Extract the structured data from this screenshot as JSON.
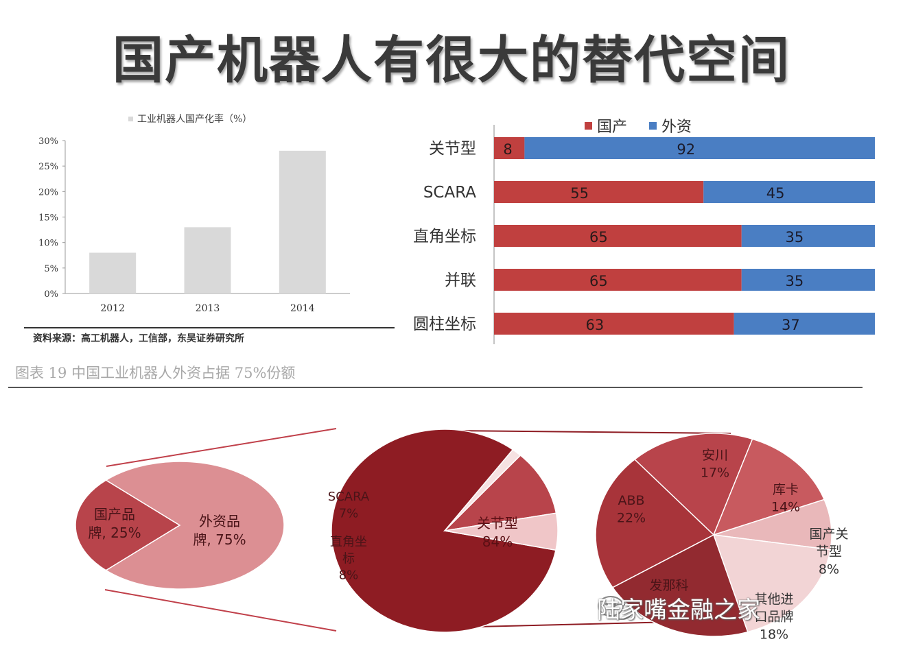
{
  "title": "国产机器人有很大的替代空间",
  "caption": "图表 19 中国工业机器人外资占据 75%份额",
  "watermark": "陆家嘴金融之家",
  "colors": {
    "domestic": "#c0403f",
    "foreign": "#4a7ec3",
    "bar_gray": "#d9d9d9",
    "pie_dark": "#8e1c23",
    "pie_mid": "#b8444b",
    "pie_light": "#dc8f93",
    "pie_pale": "#f2d4d5"
  },
  "chart_data": [
    {
      "type": "bar",
      "legend": "工业机器人国产化率（%）",
      "categories": [
        "2012",
        "2013",
        "2014"
      ],
      "values": [
        8,
        13,
        28
      ],
      "yticks": [
        "0%",
        "5%",
        "10%",
        "15%",
        "20%",
        "25%",
        "30%"
      ],
      "ylim": [
        0,
        30
      ],
      "source": "资料来源：高工机器人，工信部，东吴证券研究所"
    },
    {
      "type": "bar",
      "orientation": "horizontal-stacked",
      "categories": [
        "关节型",
        "SCARA",
        "直角坐标",
        "并联",
        "圆柱坐标"
      ],
      "series": [
        {
          "name": "国产",
          "values": [
            8,
            55,
            65,
            65,
            63
          ]
        },
        {
          "name": "外资",
          "values": [
            92,
            45,
            35,
            35,
            37
          ]
        }
      ],
      "xlim": [
        0,
        100
      ]
    },
    {
      "type": "pie",
      "slices": [
        {
          "label": "国产品牌, 25%",
          "value": 25
        },
        {
          "label": "外资品牌, 75%",
          "value": 75
        }
      ]
    },
    {
      "type": "pie",
      "slices": [
        {
          "label": "关节型",
          "pct": "84%",
          "value": 84
        },
        {
          "label": "SCARA",
          "pct": "7%",
          "value": 7
        },
        {
          "label": "直角坐标",
          "pct": "8%",
          "value": 8
        }
      ]
    },
    {
      "type": "pie",
      "slices": [
        {
          "label": "安川",
          "pct": "17%",
          "value": 17
        },
        {
          "label": "库卡",
          "pct": "14%",
          "value": 14
        },
        {
          "label": "国产关节型",
          "pct": "8%",
          "value": 8
        },
        {
          "label": "其他进口品牌",
          "pct": "18%",
          "value": 18
        },
        {
          "label": "发那科",
          "pct": "",
          "value": 21
        },
        {
          "label": "ABB",
          "pct": "22%",
          "value": 22
        }
      ]
    }
  ]
}
